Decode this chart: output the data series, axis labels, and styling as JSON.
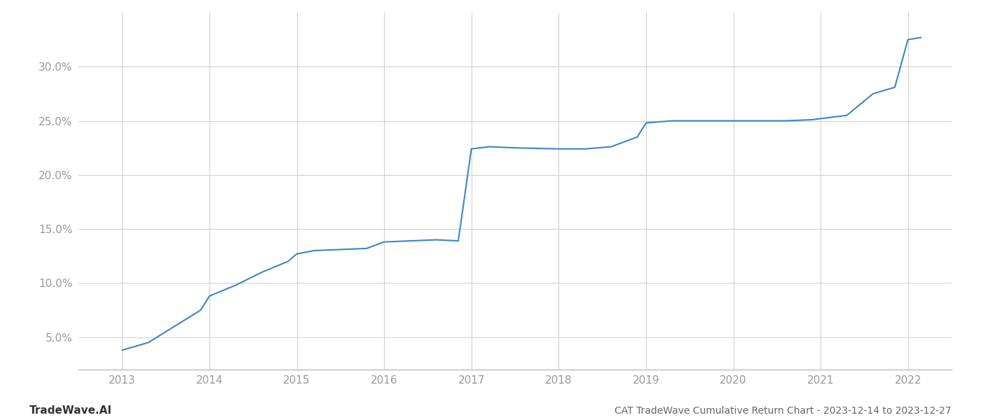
{
  "title": "CAT TradeWave Cumulative Return Chart - 2023-12-14 to 2023-12-27",
  "watermark": "TradeWave.AI",
  "line_color": "#3a86c8",
  "background_color": "#ffffff",
  "grid_color": "#cccccc",
  "x_values": [
    2013.0,
    2013.3,
    2013.6,
    2013.9,
    2014.0,
    2014.3,
    2014.6,
    2014.9,
    2015.0,
    2015.2,
    2015.5,
    2015.8,
    2016.0,
    2016.3,
    2016.6,
    2016.85,
    2017.0,
    2017.2,
    2017.5,
    2018.0,
    2018.3,
    2018.6,
    2018.9,
    2019.0,
    2019.3,
    2019.6,
    2019.9,
    2020.0,
    2020.3,
    2020.6,
    2020.9,
    2021.0,
    2021.3,
    2021.6,
    2021.85,
    2022.0,
    2022.15
  ],
  "y_values": [
    3.8,
    4.5,
    6.0,
    7.5,
    8.8,
    9.8,
    11.0,
    12.0,
    12.7,
    13.0,
    13.1,
    13.2,
    13.8,
    13.9,
    14.0,
    13.9,
    22.4,
    22.6,
    22.5,
    22.4,
    22.4,
    22.6,
    23.5,
    24.8,
    25.0,
    25.0,
    25.0,
    25.0,
    25.0,
    25.0,
    25.1,
    25.2,
    25.5,
    27.5,
    28.1,
    32.5,
    32.7
  ],
  "xlim": [
    2012.5,
    2022.5
  ],
  "ylim": [
    2.0,
    35.0
  ],
  "yticks": [
    5.0,
    10.0,
    15.0,
    20.0,
    25.0,
    30.0
  ],
  "xticks": [
    2013,
    2014,
    2015,
    2016,
    2017,
    2018,
    2019,
    2020,
    2021,
    2022
  ],
  "tick_label_color": "#999999",
  "title_color": "#666666",
  "watermark_color": "#333333",
  "line_width": 1.5,
  "title_fontsize": 10,
  "tick_fontsize": 11,
  "watermark_fontsize": 11
}
